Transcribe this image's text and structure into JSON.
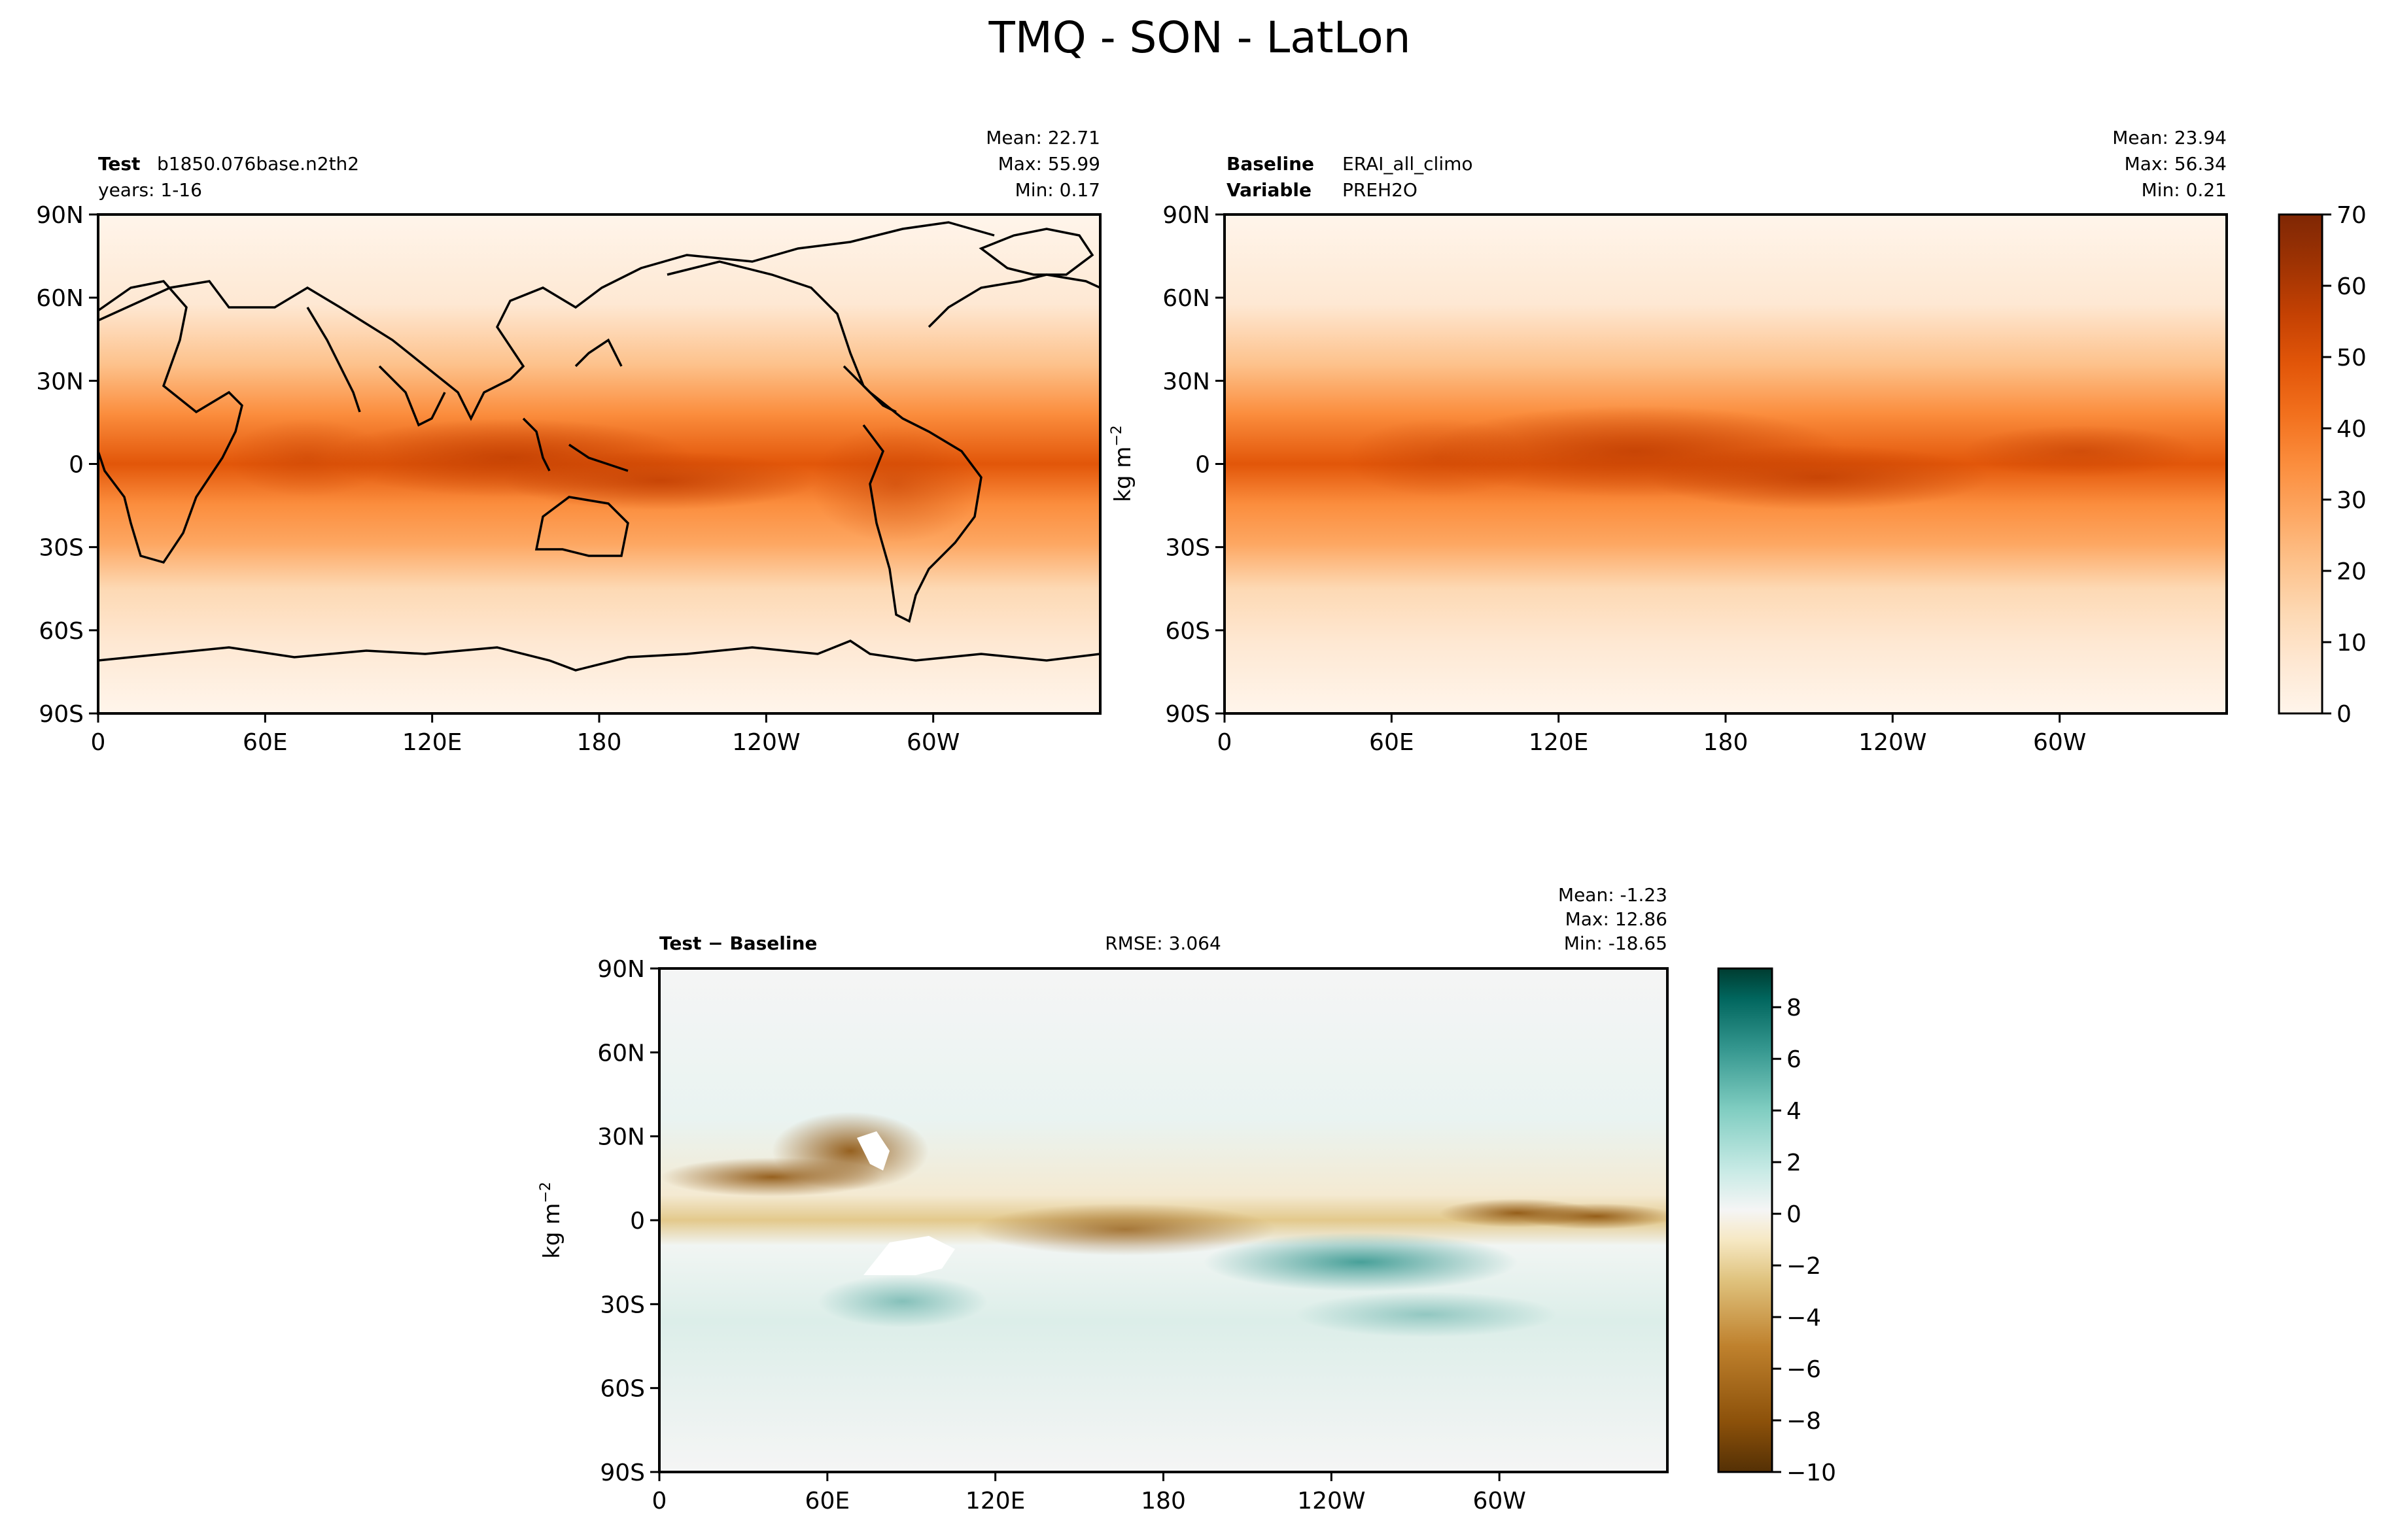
{
  "figure": {
    "title": "TMQ - SON - LatLon"
  },
  "chart_data": [
    {
      "type": "heatmap",
      "name": "test",
      "label_bold": "Test",
      "label_value": "b1850.076base.n2th2",
      "label_line2": "years: 1-16",
      "stats": {
        "mean": "Mean: 22.71",
        "max": "Max: 55.99",
        "min": "Min:  0.17"
      },
      "x_ticks": [
        "0",
        "60E",
        "120E",
        "180",
        "120W",
        "60W"
      ],
      "y_ticks": [
        "90N",
        "60N",
        "30N",
        "0",
        "30S",
        "60S",
        "90S"
      ],
      "xlim": [
        0,
        360
      ],
      "ylim": [
        -90,
        90
      ],
      "colormap": "Oranges"
    },
    {
      "type": "heatmap",
      "name": "baseline",
      "label_bold": "Baseline",
      "label_value": "ERAI_all_climo",
      "label_bold2": "Variable",
      "label_value2": "PREH2O",
      "stats": {
        "mean": "Mean: 23.94",
        "max": "Max: 56.34",
        "min": "Min:  0.21"
      },
      "x_ticks": [
        "0",
        "60E",
        "120E",
        "180",
        "120W",
        "60W"
      ],
      "y_ticks": [
        "90N",
        "60N",
        "30N",
        "0",
        "30S",
        "60S",
        "90S"
      ],
      "ylabel": "kg m",
      "ylabel_exp": "−2",
      "xlim": [
        0,
        360
      ],
      "ylim": [
        -90,
        90
      ],
      "colormap": "Oranges",
      "colorbar": {
        "ticks": [
          "0",
          "10",
          "20",
          "30",
          "40",
          "50",
          "60",
          "70"
        ],
        "range": [
          0,
          70
        ]
      }
    },
    {
      "type": "heatmap",
      "name": "difference",
      "label_bold": "Test − Baseline",
      "rmse": "RMSE: 3.064",
      "stats": {
        "mean": "Mean: -1.23",
        "max": "Max: 12.86",
        "min": "Min: -18.65"
      },
      "x_ticks": [
        "0",
        "60E",
        "120E",
        "180",
        "120W",
        "60W"
      ],
      "y_ticks": [
        "90N",
        "60N",
        "30N",
        "0",
        "30S",
        "60S",
        "90S"
      ],
      "ylabel": "kg m",
      "ylabel_exp": "−2",
      "xlim": [
        0,
        360
      ],
      "ylim": [
        -90,
        90
      ],
      "colormap": "BrBG",
      "colorbar": {
        "ticks": [
          "8",
          "6",
          "4",
          "2",
          "0",
          "−2",
          "−4",
          "−6",
          "−8",
          "−10"
        ],
        "range": [
          -10,
          9.5
        ]
      }
    }
  ],
  "colors": {
    "oranges": [
      "#fff5eb",
      "#fee8d3",
      "#fdd9b4",
      "#fdc28c",
      "#fda762",
      "#fb8d3d",
      "#f2701d",
      "#e25609",
      "#c44103",
      "#9f3303",
      "#7f2704"
    ],
    "brbg": [
      "#543005",
      "#8c510a",
      "#bf812d",
      "#dfc27d",
      "#f6e8c3",
      "#f5f5f5",
      "#c7eae5",
      "#80cdc1",
      "#35978f",
      "#01665e",
      "#003c30"
    ]
  }
}
